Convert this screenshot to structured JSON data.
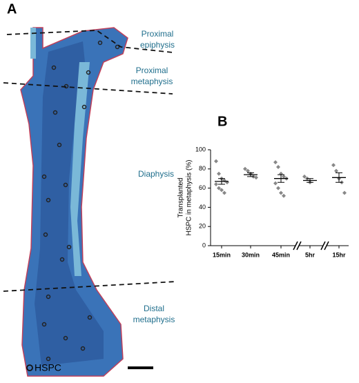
{
  "panel_a": {
    "letter": "A",
    "regions": [
      {
        "lines": [
          "Proximal",
          "epiphysis"
        ]
      },
      {
        "lines": [
          "Proximal",
          "metaphysis"
        ]
      },
      {
        "lines": [
          "Diaphysis"
        ]
      },
      {
        "lines": [
          "Distal",
          "metaphysis"
        ]
      }
    ],
    "legend": "HSPC"
  },
  "chart_data": {
    "type": "strip",
    "letter": "B",
    "ylabel": [
      "Transplanted",
      "HSPC in metaphysis (%)"
    ],
    "categories": [
      "15min",
      "30min",
      "45min",
      "5hr",
      "15hr"
    ],
    "points": [
      [
        88,
        75,
        70,
        68,
        66,
        64,
        60,
        58,
        55
      ],
      [
        80,
        78,
        75,
        72,
        71
      ],
      [
        87,
        82,
        75,
        72,
        70,
        65,
        60,
        55,
        52
      ],
      [
        72,
        70,
        66
      ],
      [
        84,
        78,
        70,
        66,
        55
      ]
    ],
    "means": [
      67,
      74,
      70,
      68,
      71
    ],
    "errors": [
      3,
      2,
      4,
      2,
      5
    ],
    "color": "#888888",
    "ylim": [
      0,
      100
    ],
    "yticks": [
      0,
      20,
      40,
      60,
      80,
      100
    ]
  }
}
